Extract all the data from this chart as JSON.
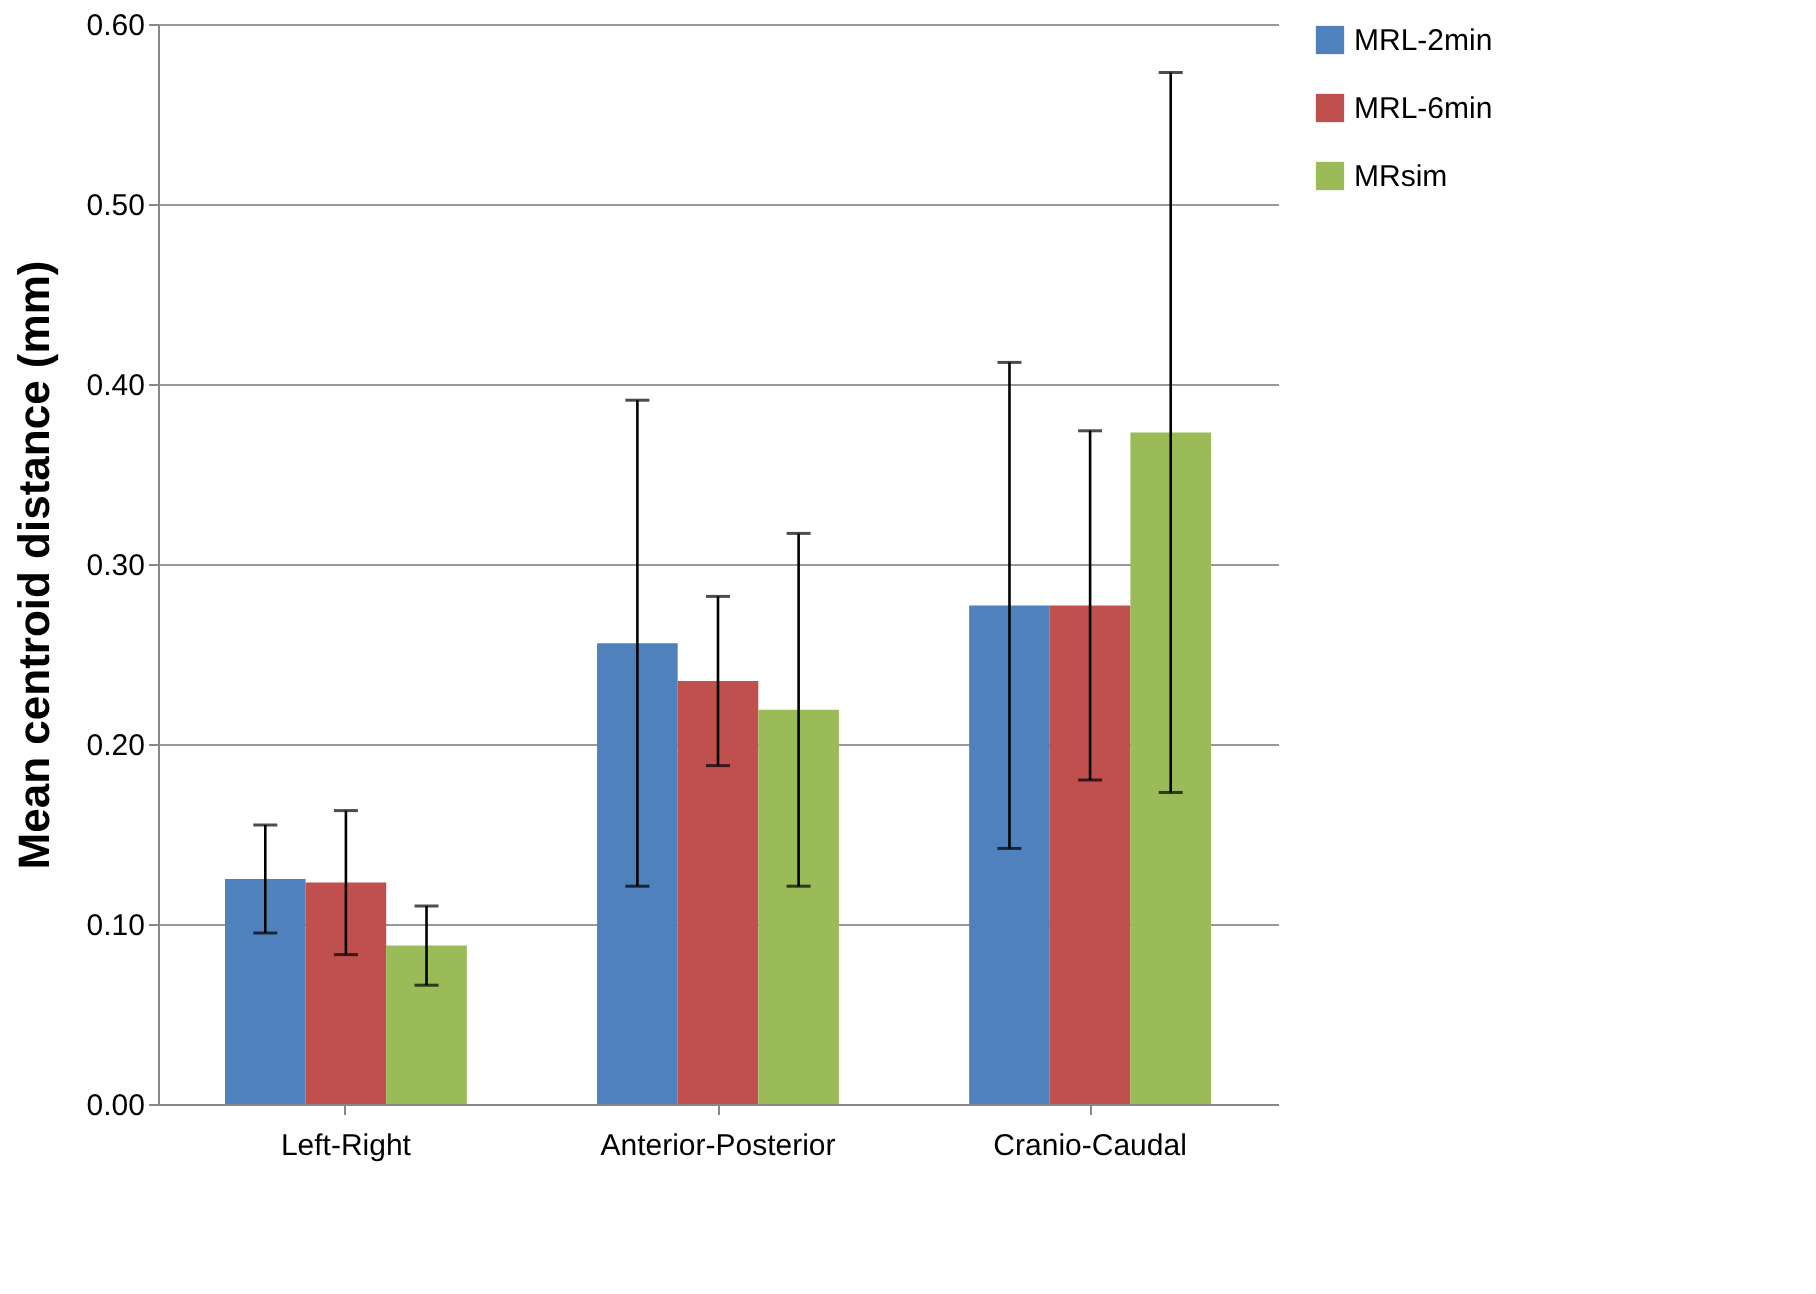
{
  "chart_data": {
    "type": "bar",
    "ylabel": "Mean centroid distance (mm)",
    "categories": [
      "Left-Right",
      "Anterior-Posterior",
      "Cranio-Caudal"
    ],
    "series": [
      {
        "name": "MRL-2min",
        "color": "#4f81bd",
        "values": [
          0.125,
          0.256,
          0.277
        ],
        "errors": [
          0.03,
          0.135,
          0.135
        ]
      },
      {
        "name": "MRL-6min",
        "color": "#c0504d",
        "values": [
          0.123,
          0.235,
          0.277
        ],
        "errors": [
          0.04,
          0.047,
          0.097
        ]
      },
      {
        "name": "MRsim",
        "color": "#9bbb59",
        "values": [
          0.088,
          0.219,
          0.373
        ],
        "errors": [
          0.022,
          0.098,
          0.2
        ]
      }
    ],
    "ylim": [
      0,
      0.6
    ],
    "yticks": [
      {
        "value": 0,
        "label": "0.00"
      },
      {
        "value": 0.1,
        "label": "0.10"
      },
      {
        "value": 0.2,
        "label": "0.20"
      },
      {
        "value": 0.3,
        "label": "0.30"
      },
      {
        "value": 0.4,
        "label": "0.40"
      },
      {
        "value": 0.5,
        "label": "0.50"
      },
      {
        "value": 0.6,
        "label": "0.60"
      }
    ],
    "grid": "y",
    "legend": "right"
  }
}
